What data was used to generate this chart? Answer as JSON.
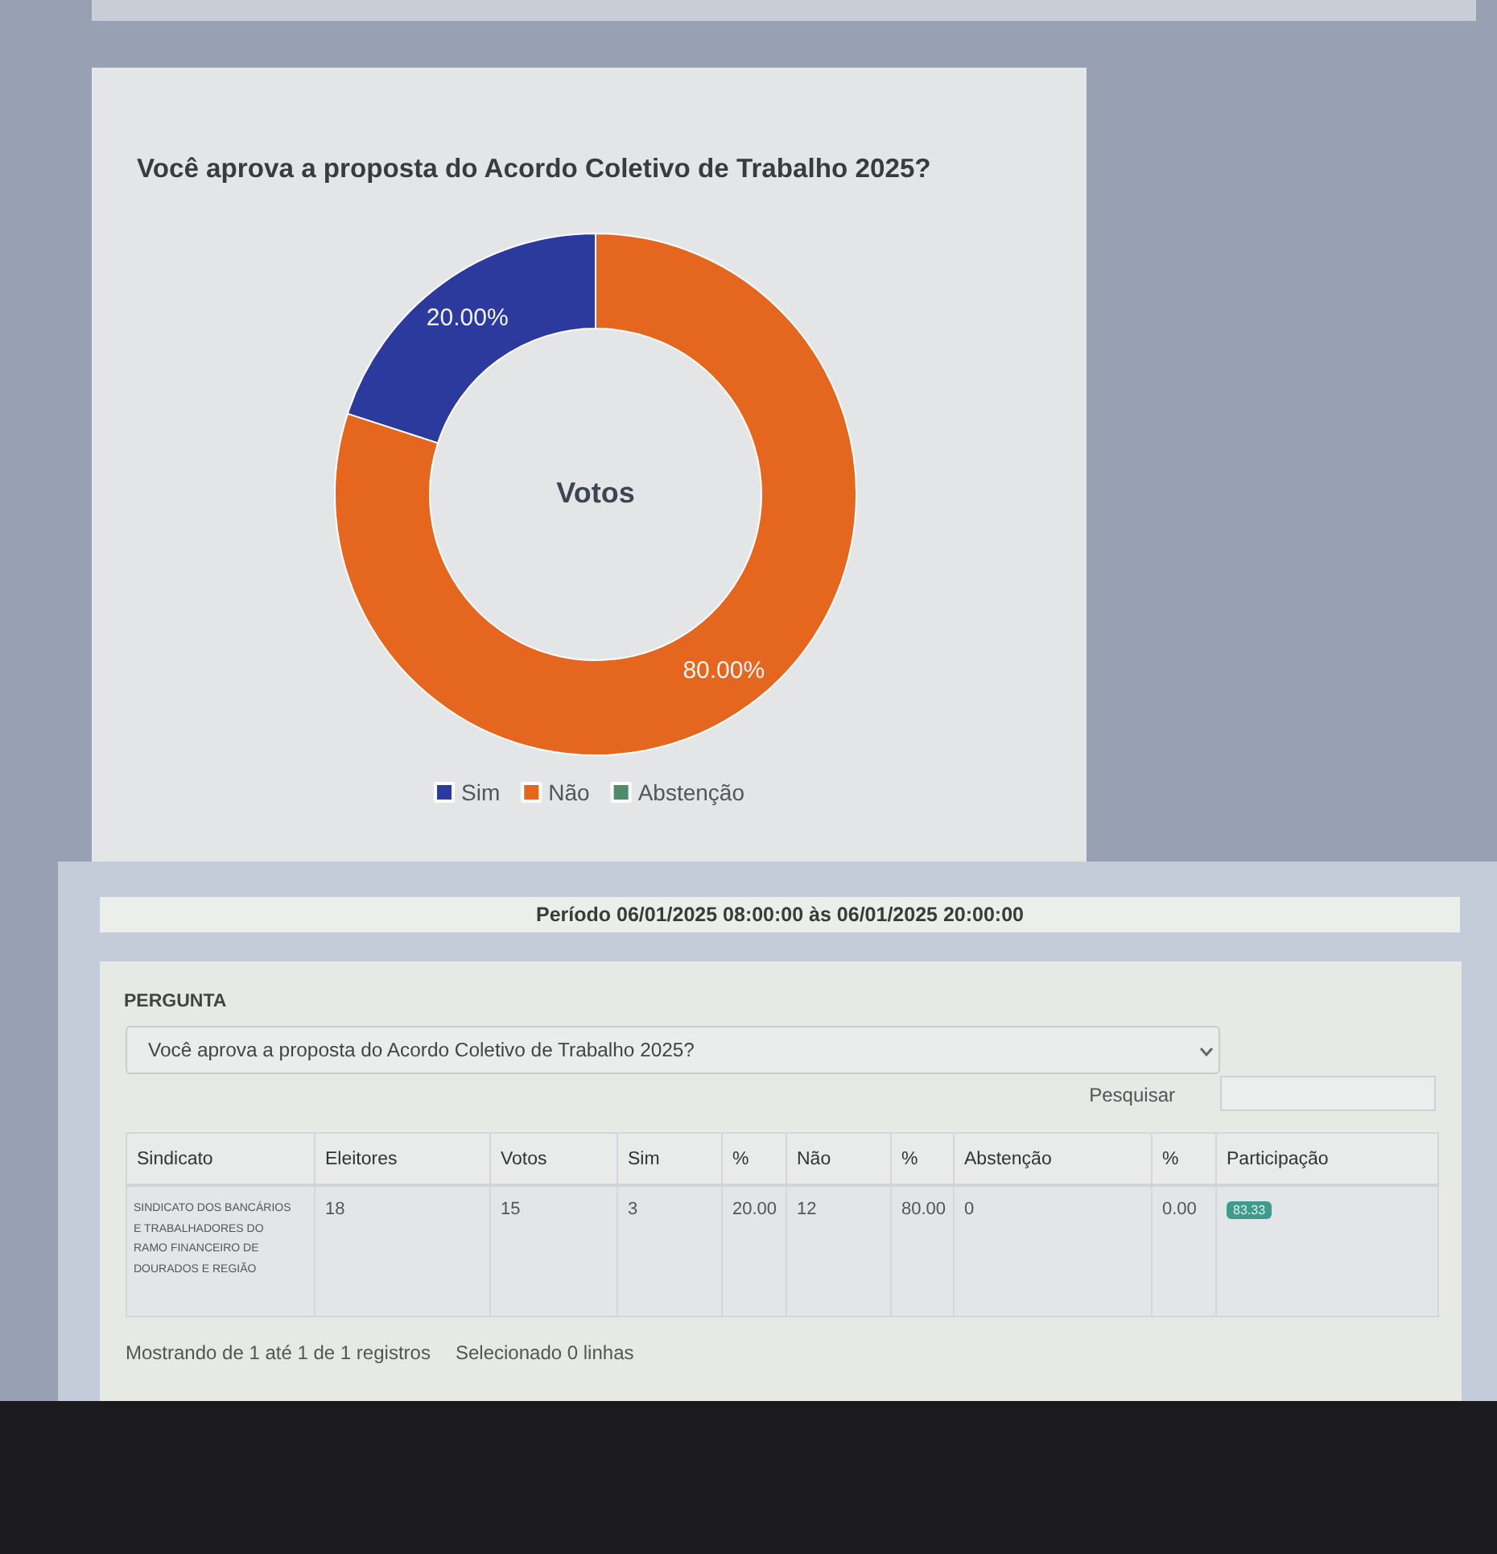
{
  "chart_data": [
    {
      "type": "donut",
      "title": "Você aprova a proposta do Acordo Coletivo de Trabalho 2025?",
      "annotations": [
        "Votos"
      ],
      "categories": [
        "Sim",
        "Não",
        "Abstenção"
      ],
      "values": [
        20,
        80,
        0
      ],
      "colors": [
        "#2b3a9c",
        "#e5661f",
        "#4e8c6c"
      ],
      "value_labels": [
        "20.00%",
        "80.00%",
        null
      ],
      "legend": "bottom"
    },
    {
      "type": "other",
      "annotations": [
        "Período 06/01/2025 08:00:00 às 06/01/2025 20:00:00",
        "PERGUNTA",
        "Você aprova a proposta do Acordo Coletivo de Trabalho 2025?",
        "Pesquisar",
        "Sindicato",
        "Eleitores",
        "Votos",
        "Sim",
        "%",
        "Não",
        "%",
        "Abstenção",
        "%",
        "Participação",
        "SINDICATO DOS BANCÁRIOS E TRABALHADORES DO RAMO FINANCEIRO DE DOURADOS E REGIÃO",
        "18",
        "15",
        "3",
        "20.00",
        "12",
        "80.00",
        "0",
        "0.00",
        "83.33",
        "Mostrando de 1 até 1 de 1 registros",
        "Selecionado 0 linhas"
      ]
    }
  ]
}
